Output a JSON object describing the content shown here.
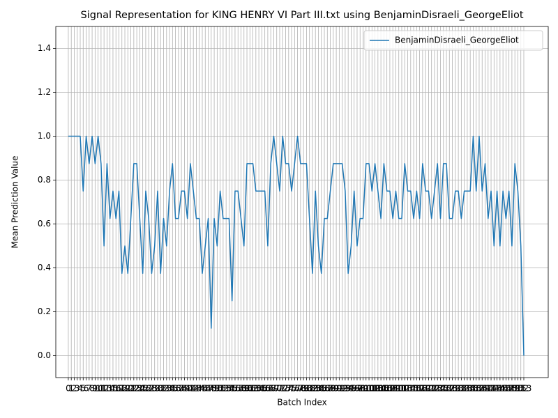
{
  "chart_data": {
    "type": "line",
    "title": "Signal Representation for KING HENRY VI Part III.txt using BenjaminDisraeli_GeorgeEliot",
    "x_label": "Batch Index",
    "y_label": "Mean Prediction Value",
    "x": [
      0,
      1,
      2,
      3,
      4,
      5,
      6,
      7,
      8,
      9,
      10,
      11,
      12,
      13,
      14,
      15,
      16,
      17,
      18,
      19,
      20,
      21,
      22,
      23,
      24,
      25,
      26,
      27,
      28,
      29,
      30,
      31,
      32,
      33,
      34,
      35,
      36,
      37,
      38,
      39,
      40,
      41,
      42,
      43,
      44,
      45,
      46,
      47,
      48,
      49,
      50,
      51,
      52,
      53,
      54,
      55,
      56,
      57,
      58,
      59,
      60,
      61,
      62,
      63,
      64,
      65,
      66,
      67,
      68,
      69,
      70,
      71,
      72,
      73,
      74,
      75,
      76,
      77,
      78,
      79,
      80,
      81,
      82,
      83,
      84,
      85,
      86,
      87,
      88,
      89,
      90,
      91,
      92,
      93,
      94,
      95,
      96,
      97,
      98,
      99,
      100,
      101,
      102,
      103,
      104,
      105,
      106,
      107,
      108,
      109,
      110,
      111,
      112,
      113,
      114,
      115,
      116,
      117,
      118,
      119,
      120,
      121,
      122,
      123,
      124,
      125,
      126,
      127,
      128,
      129,
      130,
      131,
      132,
      133,
      134,
      135,
      136,
      137,
      138,
      139,
      140,
      141,
      142,
      143,
      144,
      145,
      146,
      147,
      148,
      149,
      150,
      151,
      152,
      153
    ],
    "series": [
      {
        "name": "BenjaminDisraeli_GeorgeEliot",
        "color": "#1f77b4",
        "values": [
          1.0,
          1.0,
          1.0,
          1.0,
          1.0,
          0.75,
          1.0,
          0.875,
          1.0,
          0.875,
          1.0,
          0.875,
          0.5,
          0.875,
          0.625,
          0.75,
          0.625,
          0.75,
          0.375,
          0.5,
          0.375,
          0.625,
          0.875,
          0.875,
          0.625,
          0.375,
          0.75,
          0.625,
          0.375,
          0.5,
          0.75,
          0.375,
          0.625,
          0.5,
          0.75,
          0.875,
          0.625,
          0.625,
          0.75,
          0.75,
          0.625,
          0.875,
          0.75,
          0.625,
          0.625,
          0.375,
          0.5,
          0.625,
          0.125,
          0.625,
          0.5,
          0.75,
          0.625,
          0.625,
          0.625,
          0.25,
          0.75,
          0.75,
          0.625,
          0.5,
          0.875,
          0.875,
          0.875,
          0.75,
          0.75,
          0.75,
          0.75,
          0.5,
          0.875,
          1.0,
          0.875,
          0.75,
          1.0,
          0.875,
          0.875,
          0.75,
          0.875,
          1.0,
          0.875,
          0.875,
          0.875,
          0.625,
          0.375,
          0.75,
          0.5,
          0.375,
          0.625,
          0.625,
          0.75,
          0.875,
          0.875,
          0.875,
          0.875,
          0.75,
          0.375,
          0.5,
          0.75,
          0.5,
          0.625,
          0.625,
          0.875,
          0.875,
          0.75,
          0.875,
          0.75,
          0.625,
          0.875,
          0.75,
          0.75,
          0.625,
          0.75,
          0.625,
          0.625,
          0.875,
          0.75,
          0.75,
          0.625,
          0.75,
          0.625,
          0.875,
          0.75,
          0.75,
          0.625,
          0.75,
          0.875,
          0.625,
          0.875,
          0.875,
          0.625,
          0.625,
          0.75,
          0.75,
          0.625,
          0.75,
          0.75,
          0.75,
          1.0,
          0.75,
          1.0,
          0.75,
          0.875,
          0.625,
          0.75,
          0.5,
          0.75,
          0.5,
          0.75,
          0.625,
          0.75,
          0.5,
          0.875,
          0.75,
          0.5,
          0.0
        ]
      }
    ],
    "xlim": [
      -4.2,
      161.2
    ],
    "xticks": [
      0,
      1,
      2,
      3,
      4,
      5,
      6,
      7,
      8,
      9,
      10,
      11,
      12,
      13,
      14,
      15,
      16,
      17,
      18,
      19,
      20,
      21,
      22,
      23,
      24,
      25,
      26,
      27,
      28,
      29,
      30,
      31,
      32,
      33,
      34,
      35,
      36,
      37,
      38,
      39,
      40,
      41,
      42,
      43,
      44,
      45,
      46,
      47,
      48,
      49,
      50,
      51,
      52,
      53,
      54,
      55,
      56,
      57,
      58,
      59,
      60,
      61,
      62,
      63,
      64,
      65,
      66,
      67,
      68,
      69,
      70,
      71,
      72,
      73,
      74,
      75,
      76,
      77,
      78,
      79,
      80,
      81,
      82,
      83,
      84,
      85,
      86,
      87,
      88,
      89,
      90,
      91,
      92,
      93,
      94,
      95,
      96,
      97,
      98,
      99,
      100,
      101,
      102,
      103,
      104,
      105,
      106,
      107,
      108,
      109,
      110,
      111,
      112,
      113,
      114,
      115,
      116,
      117,
      118,
      119,
      120,
      121,
      122,
      123,
      124,
      125,
      126,
      127,
      128,
      129,
      130,
      131,
      132,
      133,
      134,
      135,
      136,
      137,
      138,
      139,
      140,
      141,
      142,
      143,
      144,
      145,
      146,
      147,
      148,
      149,
      150,
      151,
      152,
      153
    ],
    "ylim": [
      -0.1,
      1.5
    ],
    "yticks": [
      {
        "value": 0,
        "label": "0.0"
      },
      {
        "value": 0.2,
        "label": "0.2"
      },
      {
        "value": 0.4,
        "label": "0.4"
      },
      {
        "value": 0.6,
        "label": "0.6"
      },
      {
        "value": 0.8,
        "label": "0.8"
      },
      {
        "value": 1.0,
        "label": "1.0"
      },
      {
        "value": 1.2,
        "label": "1.2"
      },
      {
        "value": 1.4,
        "label": "1.4"
      }
    ],
    "grid": true,
    "legend": "upper right"
  }
}
